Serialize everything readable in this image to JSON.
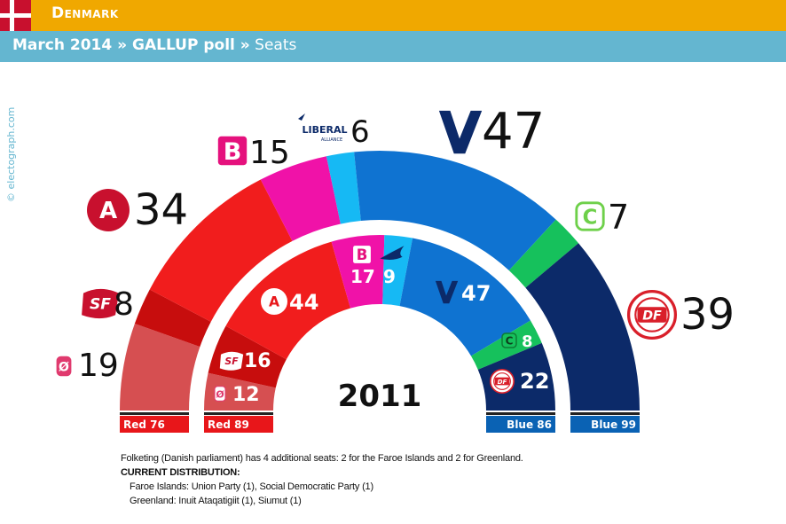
{
  "header": {
    "country": "Denmark",
    "subtitle_bold": "March 2014 » GALLUP poll »",
    "subtitle_rest": " Seats",
    "credit": "© electograph.com"
  },
  "colors": {
    "header_bar": "#f0a800",
    "sub_bar": "#64b6d0",
    "red_block": "#e8161a",
    "blue_block": "#0a62b4"
  },
  "chart_data": [
    {
      "type": "parliament-semicircle",
      "title": "March 2014 GALLUP poll",
      "total": 175,
      "series": [
        {
          "party": "Ø",
          "value": 19,
          "color": "#d64f51",
          "logo": "o-logo-icon"
        },
        {
          "party": "SF",
          "value": 8,
          "color": "#c70d0d",
          "logo": "sf-logo-icon"
        },
        {
          "party": "A",
          "value": 34,
          "color": "#f11d1d",
          "logo": "a-logo-icon"
        },
        {
          "party": "B",
          "value": 15,
          "color": "#f012a8",
          "logo": "b-logo-icon"
        },
        {
          "party": "I",
          "value": 6,
          "color": "#16b9f4",
          "logo": "liberal-alliance-logo-icon",
          "logo_text": "LIBERAL",
          "logo_subtext": "ALLIANCE"
        },
        {
          "party": "V",
          "value": 47,
          "color": "#0f73d1",
          "logo": "v-logo-icon"
        },
        {
          "party": "C",
          "value": 7,
          "color": "#16c15c",
          "logo": "c-logo-icon"
        },
        {
          "party": "DF",
          "value": 39,
          "color": "#0c2a69",
          "logo": "df-logo-icon"
        }
      ],
      "blocks": [
        {
          "label": "Red 76",
          "side": "red"
        },
        {
          "label": "Blue 99",
          "side": "blue"
        }
      ]
    },
    {
      "type": "parliament-semicircle",
      "title": "2011",
      "total": 175,
      "series": [
        {
          "party": "Ø",
          "value": 12,
          "color": "#d64f51",
          "logo": "o-logo-icon"
        },
        {
          "party": "SF",
          "value": 16,
          "color": "#c70d0d",
          "logo": "sf-logo-icon"
        },
        {
          "party": "A",
          "value": 44,
          "color": "#f11d1d",
          "logo": "a-logo-icon"
        },
        {
          "party": "B",
          "value": 17,
          "color": "#f012a8",
          "logo": "b-logo-icon"
        },
        {
          "party": "I",
          "value": 9,
          "color": "#16b9f4",
          "logo": "liberal-alliance-logo-icon"
        },
        {
          "party": "V",
          "value": 47,
          "color": "#0f73d1",
          "logo": "v-logo-icon"
        },
        {
          "party": "C",
          "value": 8,
          "color": "#16c15c",
          "logo": "c-logo-icon"
        },
        {
          "party": "DF",
          "value": 22,
          "color": "#0c2a69",
          "logo": "df-logo-icon"
        }
      ],
      "blocks": [
        {
          "label": "Red 89",
          "side": "red"
        },
        {
          "label": "Blue 86",
          "side": "blue"
        }
      ]
    }
  ],
  "footnote": {
    "line1": "Folketing (Danish parliament) has 4 additional seats: 2 for the Faroe Islands and 2 for Greenland.",
    "heading": "CURRENT DISTRIBUTION:",
    "faroe": "Faroe Islands: Union Party (1), Social Democratic Party (1)",
    "greenland": "Greenland: Inuit Ataqatigiit (1), Siumut (1)"
  }
}
